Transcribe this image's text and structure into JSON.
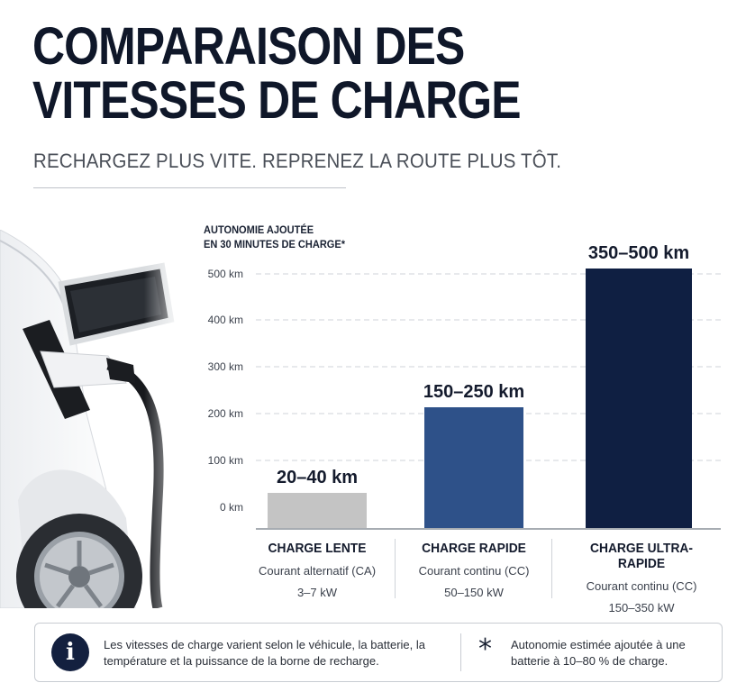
{
  "header": {
    "title_line1": "COMPARAISON DES",
    "title_line2": "VITESSES DE CHARGE",
    "subtitle": "RECHARGEZ PLUS VITE. REPRENEZ LA ROUTE PLUS TÔT."
  },
  "chart_data": {
    "type": "bar",
    "ylabel_line1": "AUTONOMIE AJOUTÉE",
    "ylabel_line2": "EN 30 MINUTES DE CHARGE*",
    "ylim": [
      0,
      500
    ],
    "yticks": [
      0,
      100,
      200,
      300,
      400,
      500
    ],
    "ytick_labels": [
      "0 km",
      "100 km",
      "200 km",
      "300 km",
      "400 km",
      "500 km"
    ],
    "grid": true,
    "categories": [
      "CHARGE LENTE",
      "CHARGE RAPIDE",
      "CHARGE ULTRA-RAPIDE"
    ],
    "values": [
      30,
      210,
      500
    ],
    "data_labels": [
      "20–40 km",
      "150–250 km",
      "350–500 km"
    ],
    "colors": [
      "#c4c4c4",
      "#2e5189",
      "#0f1f42"
    ]
  },
  "categories_detail": [
    {
      "name": "CHARGE LENTE",
      "kind": "Courant alternatif (CA)",
      "power": "3–7 kW"
    },
    {
      "name": "CHARGE RAPIDE",
      "kind": "Courant continu (CC)",
      "power": "50–150 kW"
    },
    {
      "name": "CHARGE ULTRA-RAPIDE",
      "kind": "Courant continu (CC)",
      "power": "150–350 kW"
    }
  ],
  "notes": {
    "info_icon": "info-icon",
    "info_text": "Les vitesses de charge varient selon le véhicule, la batterie, la température et la puissance de la borne de recharge.",
    "star_icon": "asterisk-icon",
    "star_symbol": "*",
    "star_text": "Autonomie estimée ajoutée à une batterie à 10–80 % de charge."
  },
  "illustration": {
    "subject": "car-charging-illustration"
  }
}
